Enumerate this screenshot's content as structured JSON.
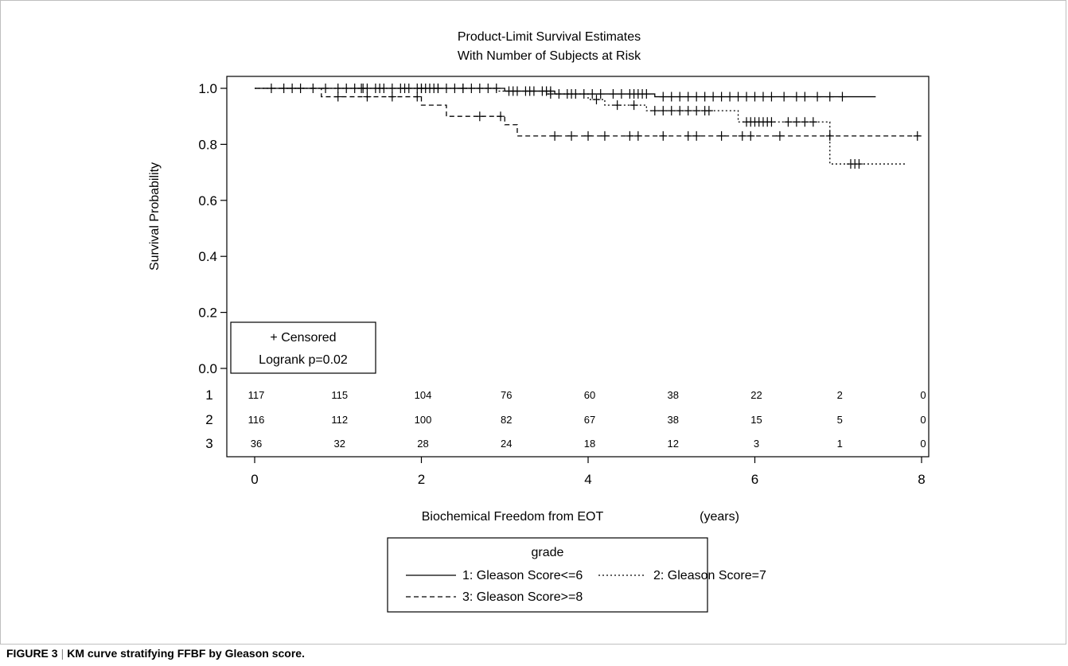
{
  "chart_data": {
    "type": "line",
    "title": "Product-Limit Survival Estimates",
    "subtitle": "With Number of Subjects at Risk",
    "xlabel": "Biochemical Freedom from EOT",
    "xunit": "(years)",
    "ylabel": "Survival Probability",
    "xlim": [
      -0.3,
      8.1
    ],
    "ylim": [
      -0.03,
      1.03
    ],
    "xticks": [
      0,
      2,
      4,
      6,
      8
    ],
    "yticks": [
      0.0,
      0.2,
      0.4,
      0.6,
      0.8,
      1.0
    ],
    "ytick_labels": [
      "0.0",
      "0.2",
      "0.4",
      "0.6",
      "0.8",
      "1.0"
    ],
    "grid": false,
    "series": [
      {
        "name": "1: Gleason Score<=6",
        "dash": "solid",
        "steps": [
          [
            0,
            1.0
          ],
          [
            3.0,
            0.99
          ],
          [
            3.6,
            0.98
          ],
          [
            4.8,
            0.97
          ],
          [
            7.45,
            0.97
          ]
        ],
        "censored": [
          0.2,
          0.35,
          0.45,
          0.55,
          0.7,
          0.85,
          1.0,
          1.1,
          1.2,
          1.28,
          1.35,
          1.45,
          1.55,
          1.65,
          1.75,
          1.85,
          1.95,
          2.0,
          2.05,
          2.1,
          2.15,
          2.2,
          2.3,
          2.4,
          2.5,
          2.6,
          2.7,
          2.8,
          2.9,
          3.05,
          3.15,
          3.25,
          3.35,
          3.45,
          3.5,
          3.55,
          3.65,
          3.75,
          3.85,
          3.95,
          4.05,
          4.15,
          4.3,
          4.4,
          4.5,
          4.55,
          4.6,
          4.65,
          4.7,
          4.9,
          5.0,
          5.1,
          5.2,
          5.3,
          5.4,
          5.5,
          5.6,
          5.7,
          5.8,
          5.9,
          6.0,
          6.1,
          6.2,
          6.35,
          6.5,
          6.6,
          6.75,
          6.9,
          7.05
        ]
      },
      {
        "name": "2: Gleason Score=7",
        "dash": "dotted",
        "steps": [
          [
            0,
            1.0
          ],
          [
            2.9,
            0.99
          ],
          [
            3.5,
            0.98
          ],
          [
            4.0,
            0.96
          ],
          [
            4.2,
            0.94
          ],
          [
            4.7,
            0.92
          ],
          [
            5.8,
            0.88
          ],
          [
            6.9,
            0.73
          ],
          [
            7.8,
            0.73
          ]
        ],
        "censored": [
          1.3,
          1.5,
          1.8,
          2.0,
          2.2,
          2.5,
          3.1,
          3.3,
          3.55,
          3.8,
          4.1,
          4.35,
          4.55,
          4.8,
          4.9,
          5.0,
          5.1,
          5.2,
          5.3,
          5.4,
          5.45,
          5.9,
          5.95,
          6.0,
          6.05,
          6.1,
          6.15,
          6.2,
          6.4,
          6.5,
          6.6,
          6.7,
          7.15,
          7.2,
          7.25
        ]
      },
      {
        "name": "3: Gleason Score>=8",
        "dash": "dashed",
        "steps": [
          [
            0,
            1.0
          ],
          [
            0.8,
            0.97
          ],
          [
            2.0,
            0.94
          ],
          [
            2.3,
            0.9
          ],
          [
            3.0,
            0.87
          ],
          [
            3.15,
            0.83
          ],
          [
            8.0,
            0.83
          ]
        ],
        "censored": [
          1.0,
          1.35,
          1.65,
          1.95,
          2.7,
          2.95,
          3.6,
          3.8,
          4.0,
          4.2,
          4.5,
          4.6,
          4.9,
          5.2,
          5.3,
          5.6,
          5.85,
          5.95,
          6.3,
          6.9,
          7.95
        ]
      }
    ],
    "censor_legend": "+ Censored",
    "logrank": "Logrank p=0.02",
    "risk_table": {
      "times": [
        0,
        1,
        2,
        3,
        4,
        5,
        6,
        7,
        8
      ],
      "rows": [
        {
          "label": "1",
          "counts": [
            "117",
            "115",
            "104",
            "76",
            "60",
            "38",
            "22",
            "2",
            "0"
          ]
        },
        {
          "label": "2",
          "counts": [
            "116",
            "112",
            "100",
            "82",
            "67",
            "38",
            "15",
            "5",
            "0"
          ]
        },
        {
          "label": "3",
          "counts": [
            "36",
            "32",
            "28",
            "24",
            "18",
            "12",
            "3",
            "1",
            "0"
          ]
        }
      ]
    },
    "legend": {
      "title": "grade",
      "placement": "bottom"
    }
  },
  "caption": {
    "label": "FIGURE 3",
    "text": "KM curve stratifying FFBF by Gleason score."
  }
}
